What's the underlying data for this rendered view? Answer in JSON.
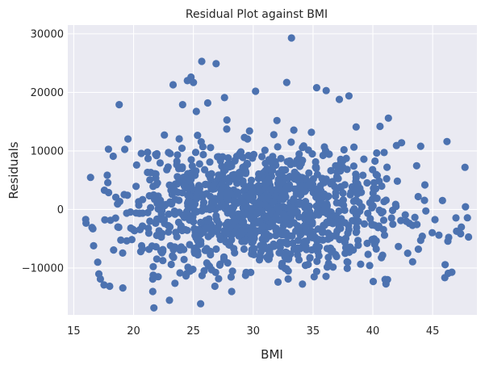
{
  "chart_data": {
    "type": "scatter",
    "title": "Residual Plot against BMI",
    "xlabel": "BMI",
    "ylabel": "Residuals",
    "xlim": [
      14.5,
      48.7
    ],
    "ylim": [
      -18000,
      31500
    ],
    "xticks": [
      15,
      20,
      25,
      30,
      35,
      40,
      45
    ],
    "yticks": [
      -10000,
      0,
      10000,
      20000,
      30000
    ],
    "xtick_labels": [
      "15",
      "20",
      "25",
      "30",
      "35",
      "40",
      "45"
    ],
    "ytick_labels": [
      "−10000",
      "0",
      "10000",
      "20000",
      "30000"
    ],
    "grid": true,
    "marker_color": "#4c72b0",
    "background_color": "#eaeaf2",
    "grid_color": "#ffffff",
    "highlight_points": [
      {
        "x": 33.2,
        "y": 29300
      },
      {
        "x": 25.7,
        "y": 25300
      },
      {
        "x": 26.9,
        "y": 24900
      },
      {
        "x": 24.8,
        "y": 22600
      },
      {
        "x": 24.5,
        "y": 22000
      },
      {
        "x": 25.0,
        "y": 21700
      },
      {
        "x": 23.3,
        "y": 21300
      },
      {
        "x": 32.8,
        "y": 21700
      },
      {
        "x": 35.3,
        "y": 20800
      },
      {
        "x": 36.1,
        "y": 20300
      },
      {
        "x": 30.2,
        "y": 20200
      },
      {
        "x": 18.8,
        "y": 17900
      },
      {
        "x": 24.1,
        "y": 17900
      },
      {
        "x": 26.2,
        "y": 18200
      },
      {
        "x": 27.6,
        "y": 19100
      },
      {
        "x": 37.2,
        "y": 18800
      },
      {
        "x": 38.0,
        "y": 19400
      },
      {
        "x": 41.3,
        "y": 15600
      },
      {
        "x": 46.2,
        "y": 11600
      },
      {
        "x": 47.7,
        "y": 7200
      },
      {
        "x": 17.9,
        "y": 10300
      },
      {
        "x": 18.3,
        "y": 9100
      },
      {
        "x": 16.0,
        "y": -1700
      },
      {
        "x": 16.6,
        "y": -3300
      },
      {
        "x": 17.0,
        "y": -9000
      },
      {
        "x": 17.1,
        "y": -11000
      },
      {
        "x": 18.0,
        "y": -13100
      },
      {
        "x": 19.1,
        "y": -13400
      },
      {
        "x": 21.7,
        "y": -16800
      },
      {
        "x": 23.0,
        "y": -15500
      },
      {
        "x": 21.6,
        "y": -14000
      },
      {
        "x": 25.6,
        "y": -16100
      },
      {
        "x": 28.2,
        "y": -14000
      },
      {
        "x": 26.8,
        "y": -13100
      },
      {
        "x": 35.3,
        "y": -10600
      },
      {
        "x": 41.1,
        "y": -12700
      },
      {
        "x": 46.3,
        "y": -10900
      },
      {
        "x": 46.6,
        "y": -10700
      },
      {
        "x": 48.0,
        "y": -4700
      },
      {
        "x": 47.4,
        "y": -3000
      },
      {
        "x": 40.6,
        "y": 14200
      },
      {
        "x": 38.6,
        "y": 14100
      },
      {
        "x": 42.4,
        "y": 11400
      },
      {
        "x": 44.0,
        "y": 10800
      }
    ],
    "cloud": {
      "count": 1180,
      "x_center": 30.6,
      "x_sd": 6.1,
      "x_min": 16.0,
      "x_max": 48.0,
      "y_center": 0,
      "y_sd": 5200,
      "y_min": -13000,
      "y_max": 17000
    }
  }
}
